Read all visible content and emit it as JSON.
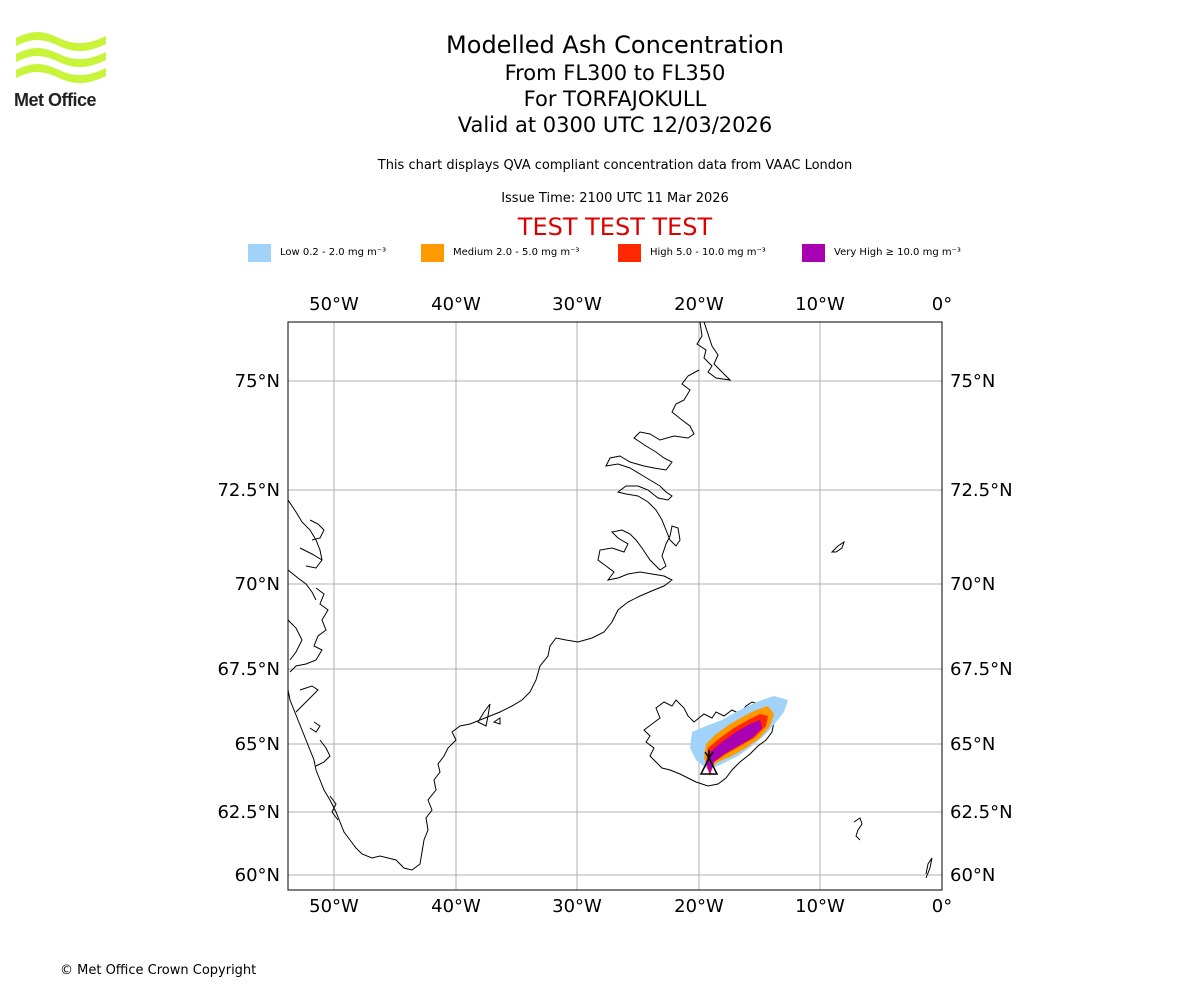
{
  "logo": {
    "name": "Met Office",
    "accent": "#c8f53a"
  },
  "titles": {
    "main": "Modelled Ash Concentration",
    "levels": "From FL300 to FL350",
    "volcano": "For TORFAJOKULL",
    "valid": "Valid at 0300 UTC 12/03/2026"
  },
  "info": {
    "qva": "This chart displays QVA compliant concentration data from VAAC London",
    "issue": "Issue Time: 2100 UTC 11 Mar 2026"
  },
  "test_banner": "TEST TEST TEST",
  "legend": [
    {
      "label": "Low 0.2 - 2.0 mg m⁻³",
      "color": "#a0d2fa"
    },
    {
      "label": "Medium 2.0 - 5.0 mg m⁻³",
      "color": "#fe9a00"
    },
    {
      "label": "High 5.0 - 10.0 mg m⁻³",
      "color": "#ff2800"
    },
    {
      "label": "Very High  ≥  10.0 mg m⁻³",
      "color": "#aa00b4"
    }
  ],
  "map": {
    "lon_labels": [
      "50°W",
      "40°W",
      "30°W",
      "20°W",
      "10°W",
      "0°"
    ],
    "lat_labels": [
      "75°N",
      "72.5°N",
      "70°N",
      "67.5°N",
      "65°N",
      "62.5°N",
      "60°N"
    ],
    "grid_color": "#b0b0b0"
  },
  "copyright": "© Met Office Crown Copyright"
}
